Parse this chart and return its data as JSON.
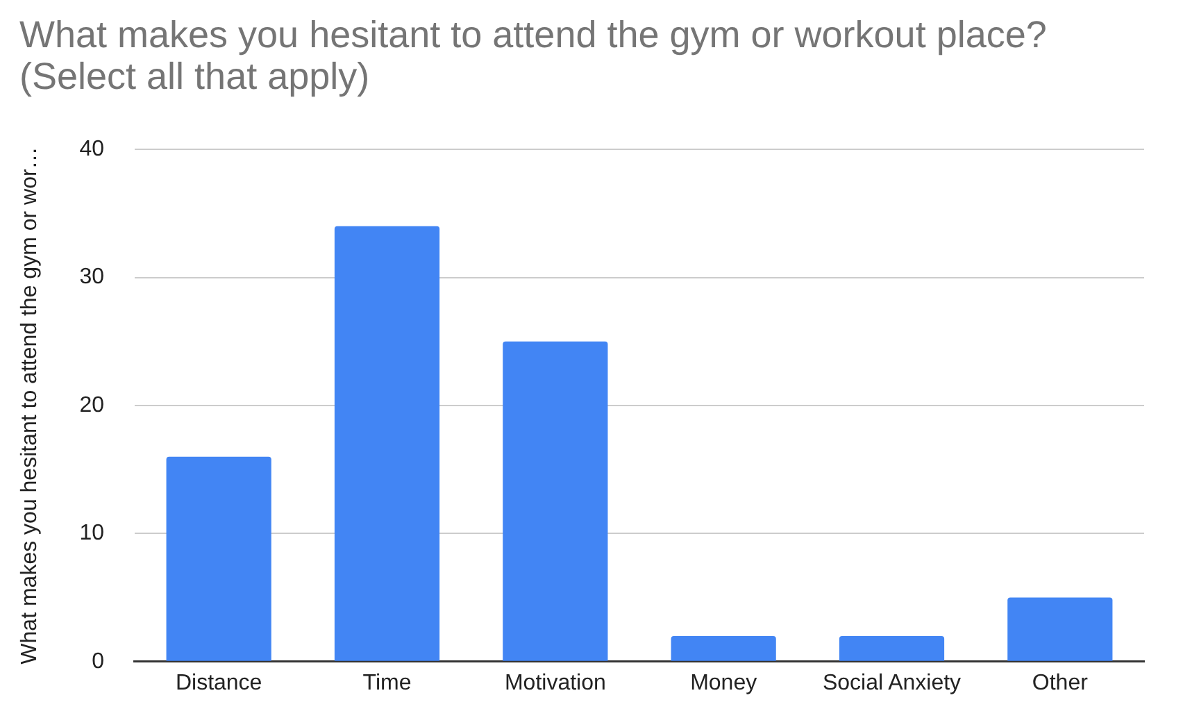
{
  "chart_data": {
    "type": "bar",
    "title": "What makes you hesitant to attend the gym or workout place? (Select all that apply)",
    "ylabel": "What makes you hesitant to attend the gym or wor…",
    "categories": [
      "Distance",
      "Time",
      "Motivation",
      "Money",
      "Social Anxiety",
      "Other"
    ],
    "values": [
      16,
      34,
      25,
      2,
      2,
      5
    ],
    "color": "#4285f4",
    "ylim": [
      0,
      40
    ],
    "yticks": [
      0,
      10,
      20,
      30,
      40
    ],
    "grid": "y",
    "legend": false
  }
}
